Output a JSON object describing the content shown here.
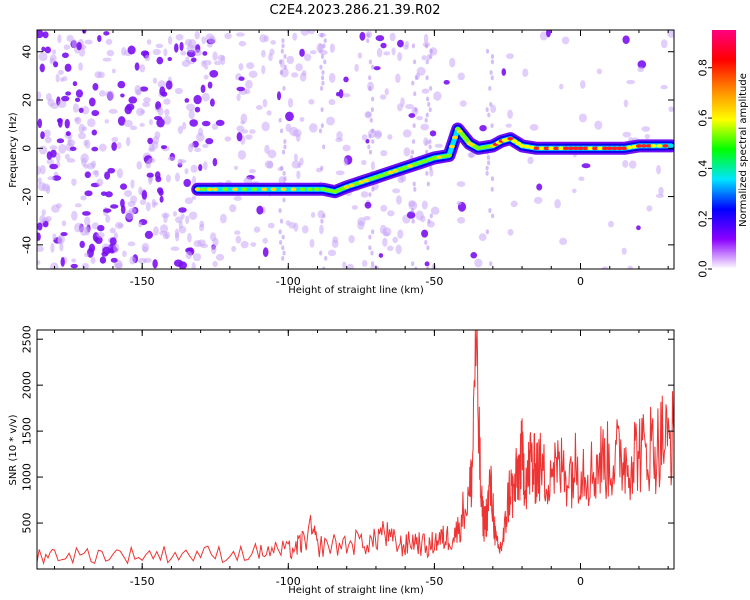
{
  "title": "C2E4.2023.286.21.39.R02",
  "chart_data": [
    {
      "type": "heatmap",
      "xlabel": "Height of straight line (km)",
      "ylabel": "Frequency (Hz)",
      "xlim": [
        -186,
        32
      ],
      "ylim": [
        -50,
        49
      ],
      "xticks": [
        -150,
        -100,
        -50,
        0
      ],
      "yticks": [
        -40,
        -20,
        0,
        20,
        40
      ],
      "colorbar": {
        "label": "Normalized spectral amplitude",
        "range": [
          0,
          0.95
        ],
        "ticks": [
          0.0,
          0.2,
          0.4,
          0.6,
          0.8
        ],
        "colors": [
          "#ffffff",
          "#8a00ff",
          "#0000ff",
          "#00e5ff",
          "#00ff00",
          "#ffff00",
          "#ff8800",
          "#ff0000",
          "#ff0080"
        ]
      },
      "ridge": {
        "x": [
          -131,
          -125,
          -115,
          -105,
          -95,
          -88,
          -84,
          -80,
          -75,
          -70,
          -65,
          -60,
          -55,
          -50,
          -45,
          -42,
          -40,
          -38,
          -35,
          -30,
          -27,
          -24,
          -20,
          -15,
          -10,
          -5,
          0,
          5,
          10,
          15,
          20,
          25,
          31
        ],
        "y": [
          -17,
          -17,
          -17,
          -17,
          -17,
          -17,
          -18,
          -16,
          -14,
          -12,
          -10,
          -8,
          -6,
          -4,
          -3,
          8,
          5,
          2,
          0,
          1,
          3,
          4,
          1,
          0,
          0,
          0,
          0,
          0,
          0,
          0,
          1,
          1,
          1
        ]
      },
      "grid": false
    },
    {
      "type": "line",
      "xlabel": "Height of straight line (km)",
      "ylabel": "SNR (10 * v/v)",
      "xlim": [
        -186,
        32
      ],
      "ylim": [
        0,
        2600
      ],
      "xticks": [
        -150,
        -100,
        -50,
        0
      ],
      "yticks": [
        500,
        1000,
        1500,
        2000,
        2500
      ],
      "series": [
        {
          "color": "#ee3333",
          "x": [
            -186,
            -180,
            -170,
            -160,
            -150,
            -140,
            -130,
            -120,
            -110,
            -105,
            -100,
            -97,
            -95,
            -92,
            -90,
            -85,
            -80,
            -75,
            -71,
            -68,
            -65,
            -62,
            -60,
            -57,
            -55,
            -52,
            -50,
            -48,
            -46,
            -44,
            -42,
            -40,
            -38,
            -37,
            -36,
            -35,
            -34,
            -33,
            -32,
            -31,
            -30,
            -29,
            -28,
            -27,
            -26,
            -25,
            -24,
            -23,
            -22,
            -21,
            -20,
            -19,
            -18,
            -17,
            -16,
            -15,
            -14,
            -12,
            -10,
            -8,
            -6,
            -4,
            -2,
            0,
            2,
            4,
            6,
            8,
            10,
            12,
            14,
            16,
            18,
            20,
            22,
            24,
            26,
            28,
            30,
            32
          ],
          "y": [
            150,
            160,
            150,
            160,
            150,
            165,
            160,
            170,
            180,
            200,
            200,
            240,
            300,
            420,
            250,
            260,
            270,
            300,
            280,
            420,
            320,
            260,
            250,
            320,
            280,
            230,
            300,
            320,
            340,
            350,
            420,
            640,
            800,
            1100,
            2600,
            1700,
            700,
            500,
            600,
            900,
            700,
            300,
            200,
            260,
            400,
            700,
            900,
            800,
            950,
            1100,
            1200,
            1050,
            1000,
            1200,
            1050,
            1150,
            1100,
            1000,
            1150,
            1050,
            1100,
            1050,
            1100,
            1150,
            1100,
            1050,
            1150,
            1200,
            1150,
            1200,
            1250,
            1150,
            1250,
            1300,
            1250,
            1350,
            1300,
            1450,
            1350,
            1500
          ]
        }
      ],
      "grid": false
    }
  ]
}
